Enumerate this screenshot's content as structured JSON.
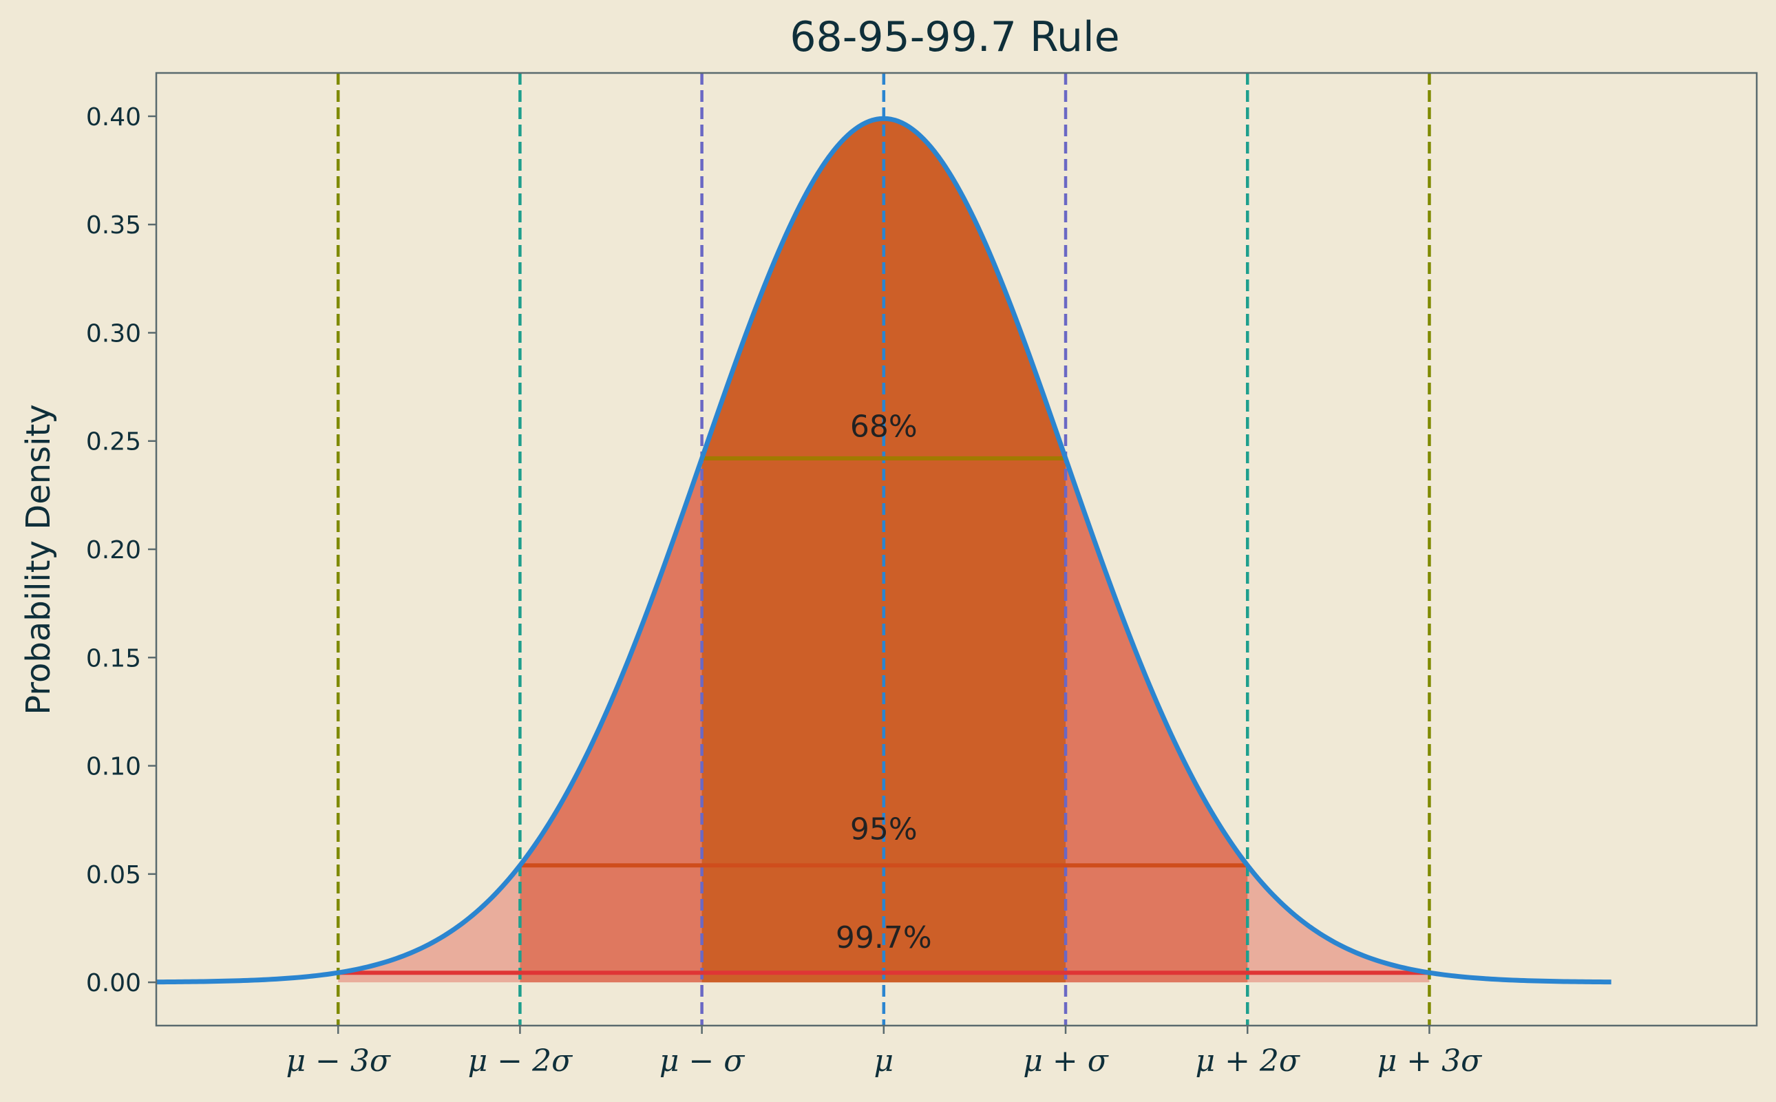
{
  "chart_data": {
    "type": "line",
    "title": "68-95-99.7 Rule",
    "xlabel": "",
    "ylabel": "Probability Density",
    "xlim": [
      -4.0,
      4.8
    ],
    "ylim": [
      -0.02,
      0.42
    ],
    "grid": false,
    "curve": {
      "mu": 0,
      "sigma": 1,
      "x_range": [
        -4,
        4
      ],
      "color": "#2b85d0"
    },
    "x_ticks": [
      {
        "x": -3,
        "label": "μ − 3σ"
      },
      {
        "x": -2,
        "label": "μ − 2σ"
      },
      {
        "x": -1,
        "label": "μ − σ"
      },
      {
        "x": 0,
        "label": "μ"
      },
      {
        "x": 1,
        "label": "μ + σ"
      },
      {
        "x": 2,
        "label": "μ + 2σ"
      },
      {
        "x": 3,
        "label": "μ + 3σ"
      }
    ],
    "y_ticks": [
      "0.00",
      "0.05",
      "0.10",
      "0.15",
      "0.20",
      "0.25",
      "0.30",
      "0.35",
      "0.40"
    ],
    "vlines": [
      {
        "x": -3,
        "color": "#7f8a00"
      },
      {
        "x": -2,
        "color": "#1f9f8e"
      },
      {
        "x": -1,
        "color": "#6a68c4"
      },
      {
        "x": 0,
        "color": "#2b85d0"
      },
      {
        "x": 1,
        "color": "#6a68c4"
      },
      {
        "x": 2,
        "color": "#1f9f8e"
      },
      {
        "x": 3,
        "color": "#7f8a00"
      }
    ],
    "regions": [
      {
        "from": -3,
        "to": 3,
        "color": "#e9ad9c"
      },
      {
        "from": -2,
        "to": 2,
        "color": "#df785f"
      },
      {
        "from": -1,
        "to": 1,
        "color": "#cd5f28"
      }
    ],
    "bands": [
      {
        "from": -1,
        "to": 1,
        "y": 0.242,
        "label": "68%",
        "label_y": 0.252,
        "color": "#a17a00"
      },
      {
        "from": -2,
        "to": 2,
        "y": 0.054,
        "label": "95%",
        "label_y": 0.066,
        "color": "#cf4d1c"
      },
      {
        "from": -3,
        "to": 3,
        "y": 0.0044,
        "label": "99.7%",
        "label_y": 0.016,
        "color": "#df3535"
      }
    ]
  }
}
